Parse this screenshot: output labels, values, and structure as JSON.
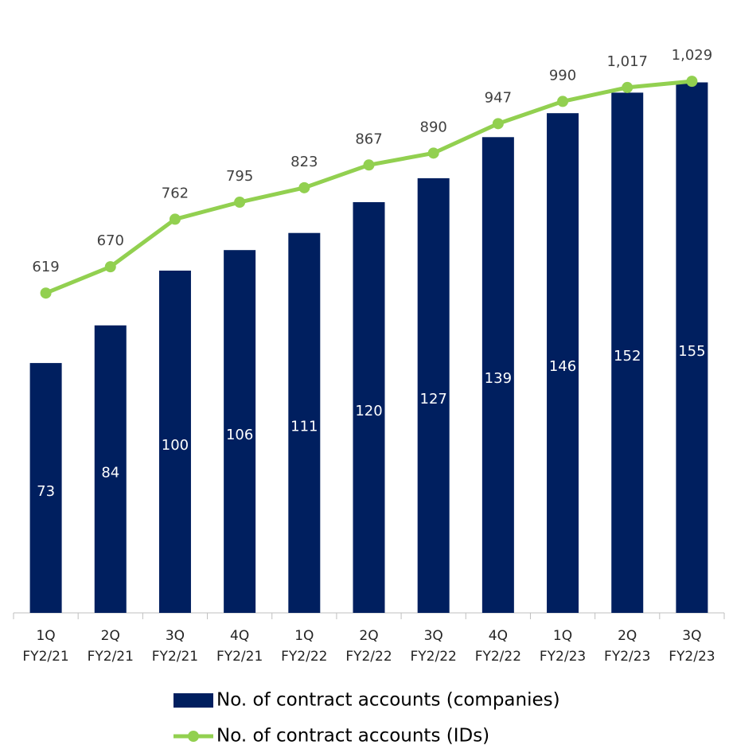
{
  "chart_data": {
    "type": "bar",
    "categories": [
      "1Q FY2/21",
      "2Q FY2/21",
      "3Q FY2/21",
      "4Q FY2/21",
      "1Q FY2/22",
      "2Q FY2/22",
      "3Q FY2/22",
      "4Q FY2/22",
      "1Q FY2/23",
      "2Q FY2/23",
      "3Q FY2/23"
    ],
    "series": [
      {
        "name": "No. of contract accounts (companies)",
        "type": "bar",
        "color": "#001f5f",
        "values": [
          73,
          84,
          100,
          106,
          111,
          120,
          127,
          139,
          146,
          152,
          155
        ]
      },
      {
        "name": "No. of contract accounts (IDs)",
        "type": "line",
        "axis": "y2",
        "color": "#92d050",
        "values": [
          619,
          670,
          762,
          795,
          823,
          867,
          890,
          947,
          990,
          1017,
          1029
        ],
        "value_labels": [
          "619",
          "670",
          "762",
          "795",
          "823",
          "867",
          "890",
          "947",
          "990",
          "1,017",
          "1,029"
        ]
      }
    ],
    "ylim": [
      0,
      160
    ],
    "y2lim": [
      0,
      1060
    ],
    "legend": "bottom"
  }
}
